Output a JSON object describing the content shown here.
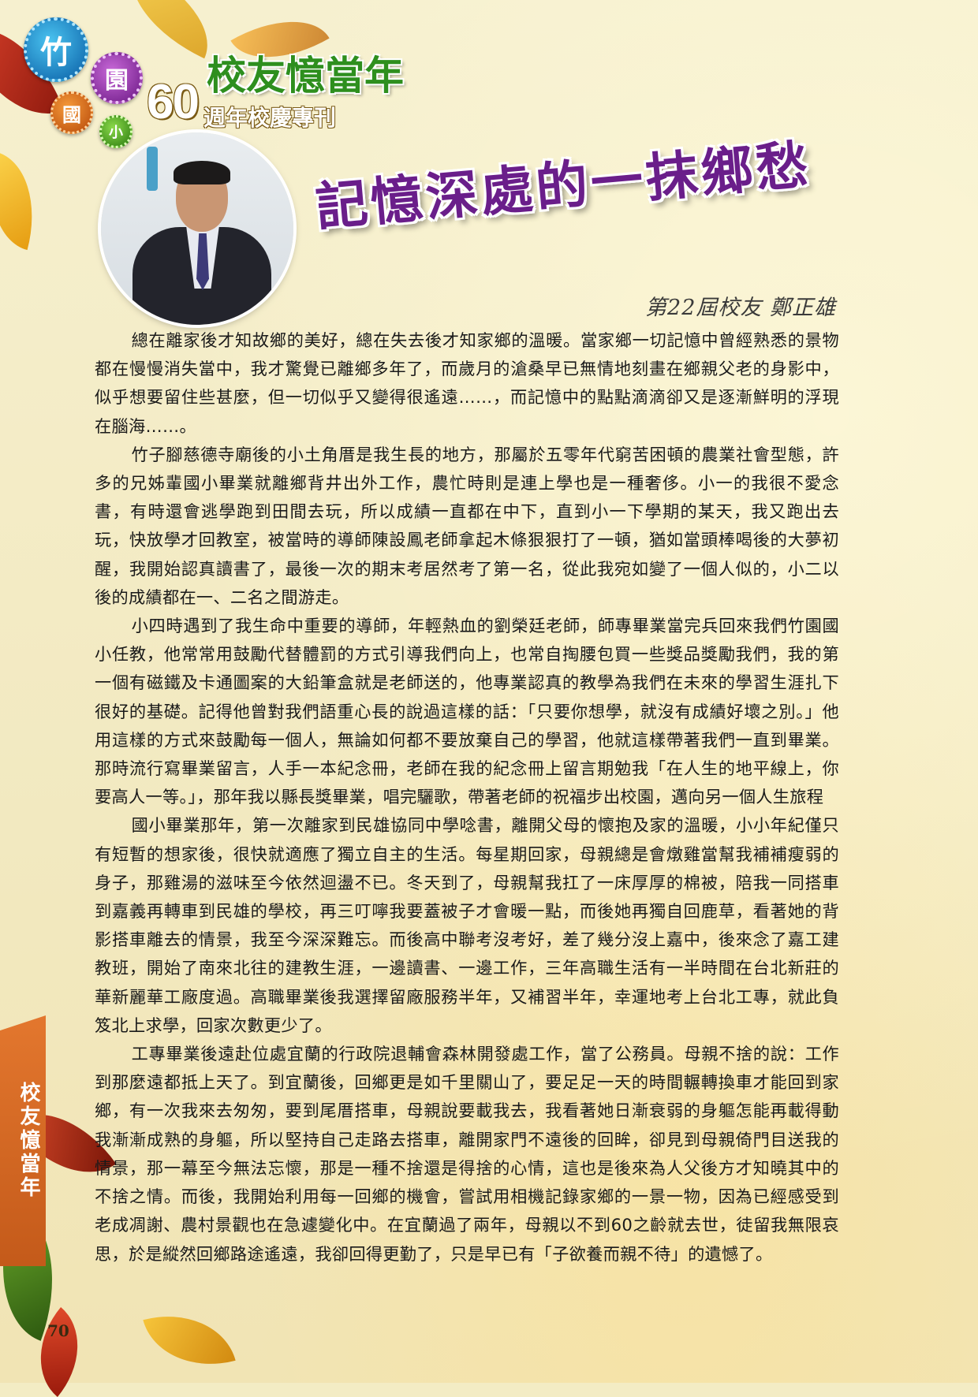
{
  "header": {
    "badges": [
      "竹",
      "園",
      "國",
      "小"
    ],
    "anniversary_number": "60",
    "anniversary_label": "週年校慶專刊",
    "section_title": "校友憶當年"
  },
  "article": {
    "title": "記憶深處的一抹鄉愁",
    "byline": "第22屆校友 鄭正雄",
    "paragraphs": [
      "總在離家後才知故鄉的美好，總在失去後才知家鄉的溫暖。當家鄉一切記憶中曾經熟悉的景物都在慢慢消失當中，我才驚覺已離鄉多年了，而歲月的滄桑早已無情地刻畫在鄉親父老的身影中，似乎想要留住些甚麼，但一切似乎又變得很遙遠……，而記憶中的點點滴滴卻又是逐漸鮮明的浮現在腦海……。",
      "竹子腳慈德寺廟後的小土角厝是我生長的地方，那屬於五零年代窮苦困頓的農業社會型態，許多的兄姊輩國小畢業就離鄉背井出外工作，農忙時則是連上學也是一種奢侈。小一的我很不愛念書，有時還會逃學跑到田間去玩，所以成績一直都在中下，直到小一下學期的某天，我又跑出去玩，快放學才回教室，被當時的導師陳設鳳老師拿起木條狠狠打了一頓，猶如當頭棒喝後的大夢初醒，我開始認真讀書了，最後一次的期末考居然考了第一名，從此我宛如變了一個人似的，小二以後的成績都在一、二名之間游走。",
      "小四時遇到了我生命中重要的導師，年輕熱血的劉榮廷老師，師專畢業當完兵回來我們竹園國小任教，他常常用鼓勵代替體罰的方式引導我們向上，也常自掏腰包買一些獎品獎勵我們，我的第一個有磁鐵及卡通圖案的大鉛筆盒就是老師送的，他專業認真的教學為我們在未來的學習生涯扎下很好的基礎。記得他曾對我們語重心長的說過這樣的話：「只要你想學，就沒有成績好壞之別。」他用這樣的方式來鼓勵每一個人，無論如何都不要放棄自己的學習，他就這樣帶著我們一直到畢業。那時流行寫畢業留言，人手一本紀念冊，老師在我的紀念冊上留言期勉我「在人生的地平線上，你要高人一等。」，那年我以縣長獎畢業，唱完驪歌，帶著老師的祝福步出校園，邁向另一個人生旅程",
      "國小畢業那年，第一次離家到民雄協同中學唸書，離開父母的懷抱及家的溫暖，小小年紀僅只有短暫的想家後，很快就適應了獨立自主的生活。每星期回家，母親總是會燉雞當幫我補補瘦弱的身子，那雞湯的滋味至今依然迴盪不已。冬天到了，母親幫我扛了一床厚厚的棉被，陪我一同搭車到嘉義再轉車到民雄的學校，再三叮嚀我要蓋被子才會暖一點，而後她再獨自回鹿草，看著她的背影搭車離去的情景，我至今深深難忘。而後高中聯考沒考好，差了幾分沒上嘉中，後來念了嘉工建教班，開始了南來北往的建教生涯，一邊讀書、一邊工作，三年高職生活有一半時間在台北新莊的華新麗華工廠度過。高職畢業後我選擇留廠服務半年，又補習半年，幸運地考上台北工專，就此負笈北上求學，回家次數更少了。",
      "工專畢業後遠赴位處宜蘭的行政院退輔會森林開發處工作，當了公務員。母親不捨的說：工作到那麼遠都抵上天了。到宜蘭後，回鄉更是如千里關山了，要足足一天的時間輾轉換車才能回到家鄉，有一次我來去匆匆，要到尾厝搭車，母親說要載我去，我看著她日漸衰弱的身軀怎能再載得動我漸漸成熟的身軀，所以堅持自己走路去搭車，離開家門不遠後的回眸，卻見到母親倚門目送我的情景，那一幕至今無法忘懷，那是一種不捨還是得捨的心情，這也是後來為人父後方才知曉其中的不捨之情。而後，我開始利用每一回鄉的機會，嘗試用相機記錄家鄉的一景一物，因為已經感受到老成凋謝、農村景觀也在急遽變化中。在宜蘭過了兩年，母親以不到60之齡就去世，徒留我無限哀思，於是縱然回鄉路途遙遠，我卻回得更勤了，只是早已有「子欲養而親不待」的遺憾了。"
    ]
  },
  "side_tab": {
    "label": "校友憶當年"
  },
  "page_number": "70",
  "colors": {
    "title_purple": "#6a1e8a",
    "section_green": "#2e8f1e",
    "tab_orange": "#d86a24"
  }
}
